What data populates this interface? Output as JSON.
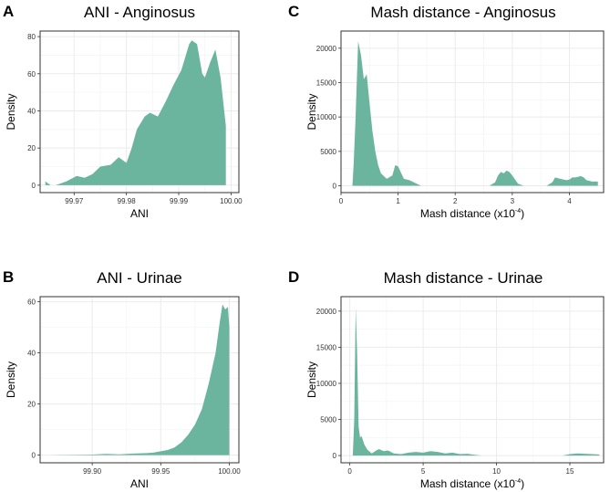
{
  "fill_color": "#6bb59f",
  "grid_major_color": "#ebebeb",
  "grid_minor_color": "#f5f5f5",
  "chart_data": [
    {
      "panel": "A",
      "type": "area",
      "title": "ANI - Anginosus",
      "xlabel": "ANI",
      "ylabel": "Density",
      "xlim": [
        99.9635,
        100.0015
      ],
      "ylim": [
        -4,
        83
      ],
      "xticks": [
        99.97,
        99.98,
        99.99,
        100.0
      ],
      "xtick_labels": [
        "99.97",
        "99.98",
        "99.99",
        "100.00"
      ],
      "yticks": [
        0,
        20,
        40,
        60,
        80
      ],
      "ytick_labels": [
        "0",
        "20",
        "40",
        "60",
        "80"
      ],
      "x": [
        99.9645,
        99.9655,
        99.9665,
        99.9685,
        99.9705,
        99.972,
        99.9735,
        99.975,
        99.977,
        99.9785,
        99.98,
        99.981,
        99.982,
        99.9835,
        99.9845,
        99.986,
        99.9875,
        99.989,
        99.9905,
        99.992,
        99.9925,
        99.9935,
        99.9945,
        99.995,
        99.996,
        99.997,
        99.998,
        99.999
      ],
      "density": [
        2,
        0,
        0,
        2,
        5,
        4,
        6,
        10,
        11,
        15,
        12,
        20,
        30,
        37,
        39,
        37,
        45,
        54,
        62,
        76,
        78,
        76,
        60,
        58,
        66,
        73,
        58,
        32
      ]
    },
    {
      "panel": "C",
      "type": "area",
      "title": "Mash distance - Anginosus",
      "xlabel": "Mash distance (x10",
      "xlabel_exp": "-4",
      "xlabel_close": ")",
      "ylabel": "Density",
      "xlim": [
        0.0,
        4.6
      ],
      "ylim": [
        -1000,
        22500
      ],
      "xticks": [
        0,
        1,
        2,
        3,
        4
      ],
      "xtick_labels": [
        "0",
        "1",
        "2",
        "3",
        "4"
      ],
      "yticks": [
        0,
        5000,
        10000,
        15000,
        20000
      ],
      "ytick_labels": [
        "0",
        "5000",
        "10000",
        "15000",
        "20000"
      ],
      "x": [
        0.2,
        0.22,
        0.25,
        0.3,
        0.35,
        0.4,
        0.45,
        0.5,
        0.55,
        0.6,
        0.65,
        0.7,
        0.8,
        0.9,
        0.95,
        1.0,
        1.1,
        1.2,
        1.3,
        1.4,
        2.2,
        2.6,
        2.7,
        2.75,
        2.8,
        2.85,
        2.9,
        2.95,
        3.0,
        3.1,
        3.2,
        3.4,
        3.6,
        3.7,
        3.75,
        3.8,
        3.9,
        3.95,
        4.0,
        4.05,
        4.1,
        4.15,
        4.2,
        4.25,
        4.3,
        4.4,
        4.5
      ],
      "density": [
        0,
        3000,
        9000,
        21000,
        19000,
        15500,
        16200,
        12000,
        8000,
        5000,
        3000,
        1800,
        1000,
        1500,
        3000,
        2800,
        1000,
        800,
        400,
        0,
        0,
        0,
        500,
        1500,
        2000,
        1800,
        2200,
        2000,
        1500,
        300,
        0,
        0,
        0,
        500,
        1200,
        1100,
        900,
        800,
        900,
        1200,
        1200,
        1300,
        1400,
        1200,
        800,
        600,
        600
      ]
    },
    {
      "panel": "B",
      "type": "area",
      "title": "ANI - Urinae",
      "xlabel": "ANI",
      "ylabel": "Density",
      "xlim": [
        99.862,
        100.007
      ],
      "ylim": [
        -3,
        62
      ],
      "xticks": [
        99.9,
        99.95,
        100.0
      ],
      "xtick_labels": [
        "99.90",
        "99.95",
        "100.00"
      ],
      "yticks": [
        0,
        20,
        40,
        60
      ],
      "ytick_labels": [
        "0",
        "20",
        "40",
        "60"
      ],
      "x": [
        99.868,
        99.9,
        99.91,
        99.92,
        99.93,
        99.94,
        99.945,
        99.95,
        99.955,
        99.96,
        99.965,
        99.97,
        99.975,
        99.98,
        99.985,
        99.99,
        99.993,
        99.995,
        99.997,
        99.999,
        100.0
      ],
      "density": [
        0,
        0.2,
        0.5,
        0.3,
        0.6,
        0.8,
        1,
        1.5,
        2,
        3,
        5,
        8,
        12,
        18,
        28,
        40,
        52,
        59,
        57,
        58,
        50
      ]
    },
    {
      "panel": "D",
      "type": "area",
      "title": "Mash distance - Urinae",
      "xlabel": "Mash distance (x10",
      "xlabel_exp": "-4",
      "xlabel_close": ")",
      "ylabel": "Density",
      "xlim": [
        -0.6,
        17.3
      ],
      "ylim": [
        -1000,
        22000
      ],
      "xticks": [
        0,
        5,
        10,
        15
      ],
      "xtick_labels": [
        "0",
        "5",
        "10",
        "15"
      ],
      "yticks": [
        0,
        5000,
        10000,
        15000,
        20000
      ],
      "ytick_labels": [
        "0",
        "5000",
        "10000",
        "15000",
        "20000"
      ],
      "x": [
        0.2,
        0.3,
        0.4,
        0.5,
        0.6,
        0.7,
        0.8,
        1.0,
        1.2,
        1.5,
        1.8,
        2.0,
        2.3,
        2.6,
        3.0,
        3.5,
        4.0,
        4.5,
        5.0,
        5.5,
        6.0,
        6.5,
        7.0,
        7.5,
        8.0,
        8.5,
        9.0,
        14.5,
        15.0,
        15.5,
        16.0,
        16.5,
        17.0
      ],
      "density": [
        0,
        5000,
        20500,
        14000,
        4000,
        2500,
        2700,
        1500,
        800,
        300,
        700,
        900,
        600,
        700,
        300,
        200,
        400,
        500,
        400,
        600,
        500,
        300,
        400,
        200,
        250,
        100,
        0,
        0,
        200,
        300,
        250,
        200,
        150
      ]
    }
  ]
}
